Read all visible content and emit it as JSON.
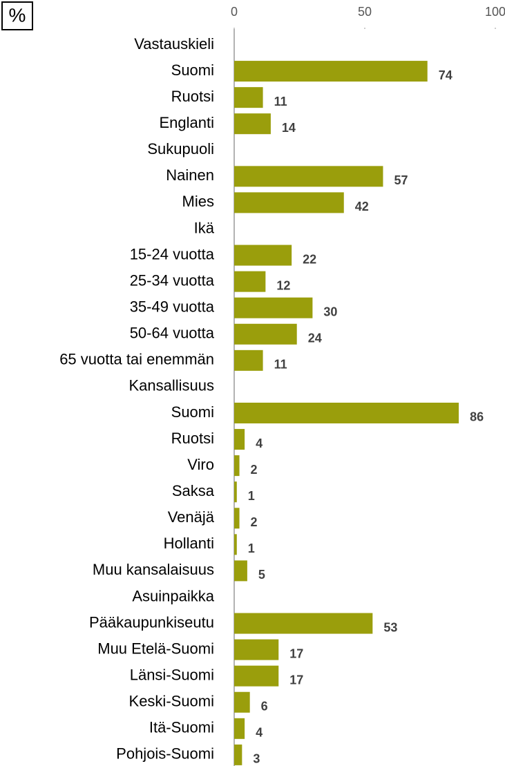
{
  "chart_data": {
    "type": "hbar",
    "title": "%",
    "categories": [
      "Vastauskieli",
      "Suomi",
      "Ruotsi",
      "Englanti",
      "Sukupuoli",
      "Nainen",
      "Mies",
      "Ikä",
      "15-24 vuotta",
      "25-34 vuotta",
      "35-49 vuotta",
      "50-64 vuotta",
      "65 vuotta tai enemmän",
      "Kansallisuus",
      "Suomi",
      "Ruotsi",
      "Viro",
      "Saksa",
      "Venäjä",
      "Hollanti",
      "Muu kansalaisuus",
      "Asuinpaikka",
      "Pääkaupunkiseutu",
      "Muu Etelä-Suomi",
      "Länsi-Suomi",
      "Keski-Suomi",
      "Itä-Suomi",
      "Pohjois-Suomi"
    ],
    "values": [
      null,
      74,
      11,
      14,
      null,
      57,
      42,
      null,
      22,
      12,
      30,
      24,
      11,
      null,
      86,
      4,
      2,
      1,
      2,
      1,
      5,
      null,
      53,
      17,
      17,
      6,
      4,
      3
    ],
    "color": "#9a9e0c",
    "xlim": [
      0,
      100
    ],
    "xticks": [
      0,
      50,
      100
    ],
    "grid": false
  }
}
